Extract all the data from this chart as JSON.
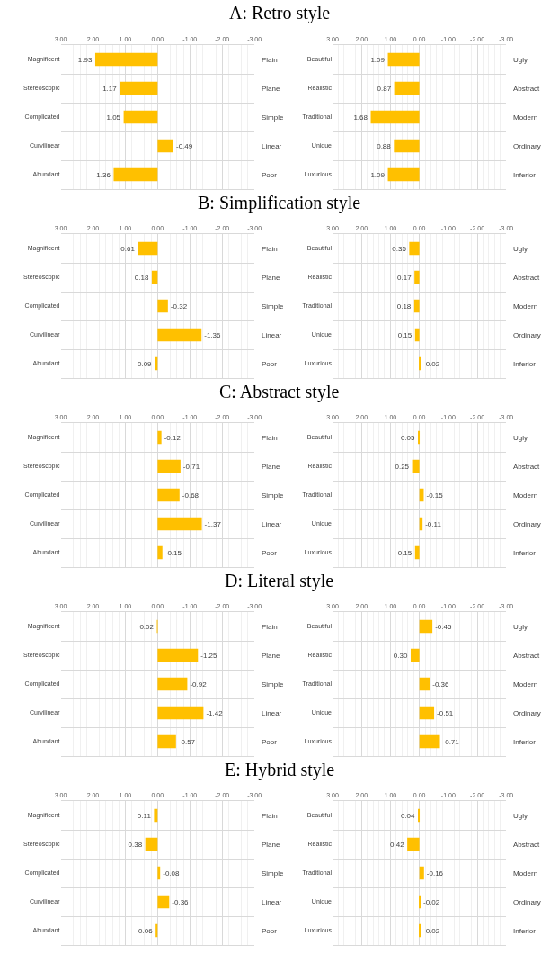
{
  "chart_data": [
    {
      "type": "bar",
      "orientation": "horizontal",
      "title": "A: Retro style",
      "categories": [
        "Magnificent",
        "Stereoscopic",
        "Complicated",
        "Curvilinear",
        "Abundant"
      ],
      "y2_categories": [
        "Plain",
        "Plane",
        "Simple",
        "Linear",
        "Poor"
      ],
      "values": [
        1.93,
        1.17,
        1.05,
        -0.49,
        1.36
      ],
      "value_labels": [
        "1.93",
        "1.17",
        "1.05",
        "-0.49",
        "1.36"
      ],
      "color": "#ffc000",
      "xlim": [
        3,
        -3
      ],
      "xticks": [
        {
          "value": 3,
          "label": "3.00"
        },
        {
          "value": 2,
          "label": "2.00"
        },
        {
          "value": 1,
          "label": "1.00"
        },
        {
          "value": 0,
          "label": "0.00"
        },
        {
          "value": -1,
          "label": "-1.00"
        },
        {
          "value": -2,
          "label": "-2.00"
        },
        {
          "value": -3,
          "label": "-3.00"
        }
      ],
      "grid": "x"
    },
    {
      "type": "bar",
      "orientation": "horizontal",
      "categories": [
        "Beautiful",
        "Realistic",
        "Traditional",
        "Unique",
        "Luxurious"
      ],
      "y2_categories": [
        "Ugly",
        "Abstract",
        "Modern",
        "Ordinary",
        "Inferior"
      ],
      "values": [
        1.09,
        0.87,
        1.68,
        0.88,
        1.09
      ],
      "value_labels": [
        "1.09",
        "0.87",
        "1.68",
        "0.88",
        "1.09"
      ],
      "color": "#ffc000",
      "xlim": [
        3,
        -3
      ],
      "xticks": [
        {
          "value": 3,
          "label": "3.00"
        },
        {
          "value": 2,
          "label": "2.00"
        },
        {
          "value": 1,
          "label": "1.00"
        },
        {
          "value": 0,
          "label": "0.00"
        },
        {
          "value": -1,
          "label": "-1.00"
        },
        {
          "value": -2,
          "label": "-2.00"
        },
        {
          "value": -3,
          "label": "-3.00"
        }
      ],
      "grid": "x"
    },
    {
      "type": "bar",
      "orientation": "horizontal",
      "title": "B: Simplification style",
      "categories": [
        "Magnificent",
        "Stereoscopic",
        "Complicated",
        "Curvilinear",
        "Abundant"
      ],
      "y2_categories": [
        "Plain",
        "Plane",
        "Simple",
        "Linear",
        "Poor"
      ],
      "values": [
        0.61,
        0.18,
        -0.32,
        -1.36,
        0.09
      ],
      "value_labels": [
        "0.61",
        "0.18",
        "-0.32",
        "-1.36",
        "0.09"
      ],
      "color": "#ffc000",
      "xlim": [
        3,
        -3
      ],
      "xticks": [
        {
          "value": 3,
          "label": "3.00"
        },
        {
          "value": 2,
          "label": "2.00"
        },
        {
          "value": 1,
          "label": "1.00"
        },
        {
          "value": 0,
          "label": "0.00"
        },
        {
          "value": -1,
          "label": "-1.00"
        },
        {
          "value": -2,
          "label": "-2.00"
        },
        {
          "value": -3,
          "label": "-3.00"
        }
      ],
      "grid": "x"
    },
    {
      "type": "bar",
      "orientation": "horizontal",
      "categories": [
        "Beautiful",
        "Realistic",
        "Traditional",
        "Unique",
        "Luxurious"
      ],
      "y2_categories": [
        "Ugly",
        "Abstract",
        "Modern",
        "Ordinary",
        "Inferior"
      ],
      "values": [
        0.35,
        0.17,
        0.18,
        0.15,
        -0.02
      ],
      "value_labels": [
        "0.35",
        "0.17",
        "0.18",
        "0.15",
        "-0.02"
      ],
      "color": "#ffc000",
      "xlim": [
        3,
        -3
      ],
      "xticks": [
        {
          "value": 3,
          "label": "3.00"
        },
        {
          "value": 2,
          "label": "2.00"
        },
        {
          "value": 1,
          "label": "1.00"
        },
        {
          "value": 0,
          "label": "0.00"
        },
        {
          "value": -1,
          "label": "-1.00"
        },
        {
          "value": -2,
          "label": "-2.00"
        },
        {
          "value": -3,
          "label": "-3.00"
        }
      ],
      "grid": "x"
    },
    {
      "type": "bar",
      "orientation": "horizontal",
      "title": "C: Abstract style",
      "categories": [
        "Magnificent",
        "Stereoscopic",
        "Complicated",
        "Curvilinear",
        "Abundant"
      ],
      "y2_categories": [
        "Plain",
        "Plane",
        "Simple",
        "Linear",
        "Poor"
      ],
      "values": [
        -0.12,
        -0.71,
        -0.68,
        -1.37,
        -0.15
      ],
      "value_labels": [
        "-0.12",
        "-0.71",
        "-0.68",
        "-1.37",
        "-0.15"
      ],
      "color": "#ffc000",
      "xlim": [
        3,
        -3
      ],
      "xticks": [
        {
          "value": 3,
          "label": "3.00"
        },
        {
          "value": 2,
          "label": "2.00"
        },
        {
          "value": 1,
          "label": "1.00"
        },
        {
          "value": 0,
          "label": "0.00"
        },
        {
          "value": -1,
          "label": "-1.00"
        },
        {
          "value": -2,
          "label": "-2.00"
        },
        {
          "value": -3,
          "label": "-3.00"
        }
      ],
      "grid": "x"
    },
    {
      "type": "bar",
      "orientation": "horizontal",
      "categories": [
        "Beautiful",
        "Realistic",
        "Traditional",
        "Unique",
        "Luxurious"
      ],
      "y2_categories": [
        "Ugly",
        "Abstract",
        "Modern",
        "Ordinary",
        "Inferior"
      ],
      "values": [
        0.05,
        0.25,
        -0.15,
        -0.11,
        0.15
      ],
      "value_labels": [
        "0.05",
        "0.25",
        "-0.15",
        "-0.11",
        "0.15"
      ],
      "color": "#ffc000",
      "xlim": [
        3,
        -3
      ],
      "xticks": [
        {
          "value": 3,
          "label": "3.00"
        },
        {
          "value": 2,
          "label": "2.00"
        },
        {
          "value": 1,
          "label": "1.00"
        },
        {
          "value": 0,
          "label": "0.00"
        },
        {
          "value": -1,
          "label": "-1.00"
        },
        {
          "value": -2,
          "label": "-2.00"
        },
        {
          "value": -3,
          "label": "-3.00"
        }
      ],
      "grid": "x"
    },
    {
      "type": "bar",
      "orientation": "horizontal",
      "title": "D: Literal style",
      "categories": [
        "Magnificent",
        "Stereoscopic",
        "Complicated",
        "Curvilinear",
        "Abundant"
      ],
      "y2_categories": [
        "Plain",
        "Plane",
        "Simple",
        "Linear",
        "Poor"
      ],
      "values": [
        0.02,
        -1.25,
        -0.92,
        -1.42,
        -0.57
      ],
      "value_labels": [
        "0.02",
        "-1.25",
        "-0.92",
        "-1.42",
        "-0.57"
      ],
      "color": "#ffc000",
      "xlim": [
        3,
        -3
      ],
      "xticks": [
        {
          "value": 3,
          "label": "3.00"
        },
        {
          "value": 2,
          "label": "2.00"
        },
        {
          "value": 1,
          "label": "1.00"
        },
        {
          "value": 0,
          "label": "0.00"
        },
        {
          "value": -1,
          "label": "-1.00"
        },
        {
          "value": -2,
          "label": "-2.00"
        },
        {
          "value": -3,
          "label": "-3.00"
        }
      ],
      "grid": "x"
    },
    {
      "type": "bar",
      "orientation": "horizontal",
      "categories": [
        "Beautiful",
        "Realistic",
        "Traditional",
        "Unique",
        "Luxurious"
      ],
      "y2_categories": [
        "Ugly",
        "Abstract",
        "Modern",
        "Ordinary",
        "Inferior"
      ],
      "values": [
        -0.45,
        0.3,
        -0.36,
        -0.51,
        -0.71
      ],
      "value_labels": [
        "-0.45",
        "0.30",
        "-0.36",
        "-0.51",
        "-0.71"
      ],
      "color": "#ffc000",
      "xlim": [
        3,
        -3
      ],
      "xticks": [
        {
          "value": 3,
          "label": "3.00"
        },
        {
          "value": 2,
          "label": "2.00"
        },
        {
          "value": 1,
          "label": "1.00"
        },
        {
          "value": 0,
          "label": "0.00"
        },
        {
          "value": -1,
          "label": "-1.00"
        },
        {
          "value": -2,
          "label": "-2.00"
        },
        {
          "value": -3,
          "label": "-3.00"
        }
      ],
      "grid": "x"
    },
    {
      "type": "bar",
      "orientation": "horizontal",
      "title": "E: Hybrid style",
      "categories": [
        "Magnificent",
        "Stereoscopic",
        "Complicated",
        "Curvilinear",
        "Abundant"
      ],
      "y2_categories": [
        "Plain",
        "Plane",
        "Simple",
        "Linear",
        "Poor"
      ],
      "values": [
        0.11,
        0.38,
        -0.08,
        -0.36,
        0.06
      ],
      "value_labels": [
        "0.11",
        "0.38",
        "-0.08",
        "-0.36",
        "0.06"
      ],
      "color": "#ffc000",
      "xlim": [
        3,
        -3
      ],
      "xticks": [
        {
          "value": 3,
          "label": "3.00"
        },
        {
          "value": 2,
          "label": "2.00"
        },
        {
          "value": 1,
          "label": "1.00"
        },
        {
          "value": 0,
          "label": "0.00"
        },
        {
          "value": -1,
          "label": "-1.00"
        },
        {
          "value": -2,
          "label": "-2.00"
        },
        {
          "value": -3,
          "label": "-3.00"
        }
      ],
      "grid": "x"
    },
    {
      "type": "bar",
      "orientation": "horizontal",
      "categories": [
        "Beautiful",
        "Realistic",
        "Traditional",
        "Unique",
        "Luxurious"
      ],
      "y2_categories": [
        "Ugly",
        "Abstract",
        "Modern",
        "Ordinary",
        "Inferior"
      ],
      "values": [
        0.04,
        0.42,
        -0.16,
        -0.02,
        -0.02
      ],
      "value_labels": [
        "0.04",
        "0.42",
        "-0.16",
        "-0.02",
        "-0.02"
      ],
      "color": "#ffc000",
      "xlim": [
        3,
        -3
      ],
      "xticks": [
        {
          "value": 3,
          "label": "3.00"
        },
        {
          "value": 2,
          "label": "2.00"
        },
        {
          "value": 1,
          "label": "1.00"
        },
        {
          "value": 0,
          "label": "0.00"
        },
        {
          "value": -1,
          "label": "-1.00"
        },
        {
          "value": -2,
          "label": "-2.00"
        },
        {
          "value": -3,
          "label": "-3.00"
        }
      ],
      "grid": "x"
    }
  ]
}
